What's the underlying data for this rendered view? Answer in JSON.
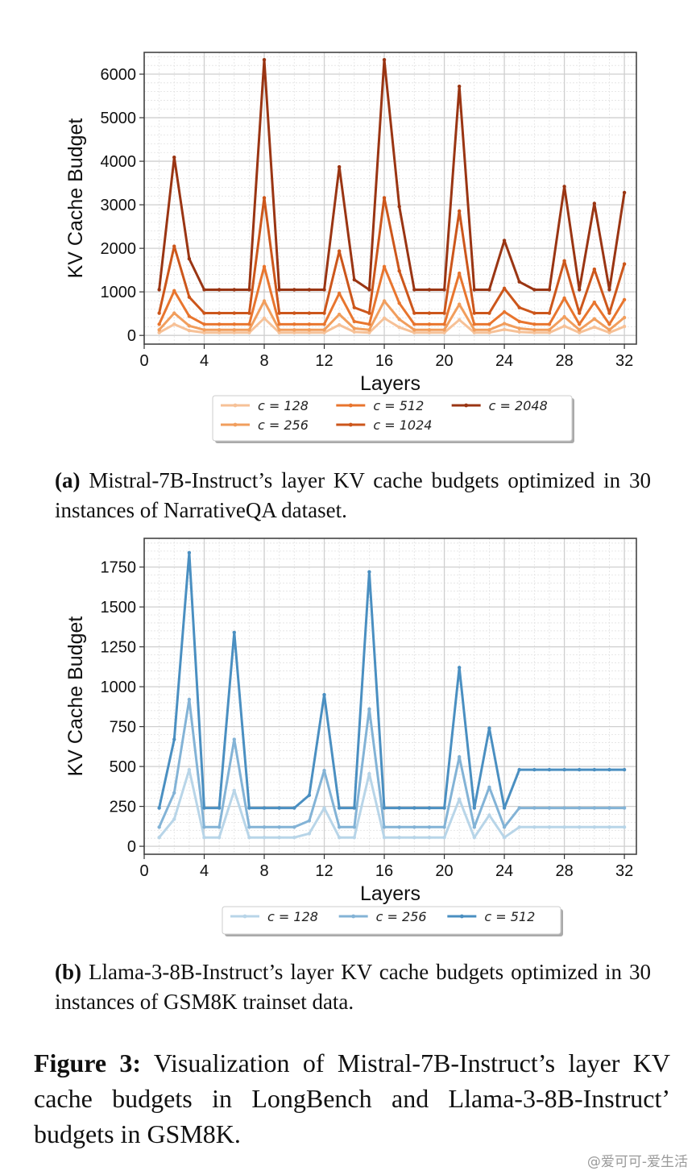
{
  "chart_data": [
    {
      "type": "line",
      "xlabel": "Layers",
      "ylabel": "KV Cache Budget",
      "xlim": [
        0,
        32.8
      ],
      "ylim": [
        -200,
        6500
      ],
      "xticks": [
        0,
        4,
        8,
        12,
        16,
        20,
        24,
        28,
        32
      ],
      "yticks": [
        0,
        1000,
        2000,
        3000,
        4000,
        5000,
        6000
      ],
      "grid": true,
      "legend_position": "bottom-center",
      "x": [
        1,
        2,
        3,
        4,
        5,
        6,
        7,
        8,
        9,
        10,
        11,
        12,
        13,
        14,
        15,
        16,
        17,
        18,
        19,
        20,
        21,
        22,
        23,
        24,
        25,
        26,
        27,
        28,
        29,
        30,
        31,
        32
      ],
      "series": [
        {
          "name": "c = 128",
          "color": "#f6c197",
          "values": [
            64,
            256,
            110,
            64,
            64,
            64,
            64,
            395,
            64,
            64,
            64,
            64,
            242,
            80,
            64,
            395,
            185,
            64,
            64,
            64,
            357,
            64,
            64,
            135,
            80,
            64,
            64,
            214,
            64,
            190,
            64,
            205
          ]
        },
        {
          "name": "c = 256",
          "color": "#f19e5d",
          "values": [
            128,
            512,
            220,
            128,
            128,
            128,
            128,
            790,
            128,
            128,
            128,
            128,
            484,
            160,
            128,
            790,
            370,
            128,
            128,
            128,
            714,
            128,
            128,
            270,
            160,
            128,
            128,
            428,
            128,
            380,
            128,
            410
          ]
        },
        {
          "name": "c = 512",
          "color": "#e8752e",
          "values": [
            256,
            1024,
            440,
            256,
            256,
            256,
            256,
            1580,
            256,
            256,
            256,
            256,
            968,
            320,
            256,
            1580,
            740,
            256,
            256,
            256,
            1428,
            256,
            256,
            540,
            320,
            256,
            256,
            856,
            256,
            760,
            256,
            820
          ]
        },
        {
          "name": "c = 1024",
          "color": "#cc561b",
          "values": [
            512,
            2048,
            880,
            512,
            512,
            512,
            512,
            3160,
            512,
            512,
            512,
            512,
            1936,
            640,
            512,
            3160,
            1480,
            512,
            512,
            512,
            2856,
            512,
            512,
            1080,
            640,
            512,
            512,
            1712,
            512,
            1520,
            512,
            1640
          ]
        },
        {
          "name": "c = 2048",
          "color": "#9a3513",
          "values": [
            1050,
            4090,
            1760,
            1050,
            1050,
            1050,
            1050,
            6330,
            1050,
            1050,
            1050,
            1050,
            3870,
            1280,
            1050,
            6330,
            2960,
            1050,
            1050,
            1050,
            5720,
            1050,
            1050,
            2180,
            1230,
            1050,
            1050,
            3420,
            1050,
            3030,
            1050,
            3280
          ]
        }
      ]
    },
    {
      "type": "line",
      "xlabel": "Layers",
      "ylabel": "KV Cache Budget",
      "xlim": [
        0,
        32.8
      ],
      "ylim": [
        -50,
        1930
      ],
      "xticks": [
        0,
        4,
        8,
        12,
        16,
        20,
        24,
        28,
        32
      ],
      "yticks": [
        0,
        250,
        500,
        750,
        1000,
        1250,
        1500,
        1750
      ],
      "grid": true,
      "legend_position": "bottom-center",
      "x": [
        1,
        2,
        3,
        4,
        5,
        6,
        7,
        8,
        9,
        10,
        11,
        12,
        13,
        14,
        15,
        16,
        17,
        18,
        19,
        20,
        21,
        22,
        23,
        24,
        25,
        26,
        27,
        28,
        29,
        30,
        31,
        32
      ],
      "series": [
        {
          "name": "c = 128",
          "color": "#b8d5e8",
          "values": [
            55,
            170,
            480,
            55,
            55,
            350,
            55,
            55,
            55,
            55,
            80,
            240,
            55,
            55,
            455,
            55,
            55,
            55,
            55,
            55,
            295,
            55,
            195,
            55,
            120,
            120,
            120,
            120,
            120,
            120,
            120,
            120
          ]
        },
        {
          "name": "c = 256",
          "color": "#83b3d6",
          "values": [
            120,
            335,
            920,
            120,
            120,
            670,
            120,
            120,
            120,
            120,
            160,
            475,
            120,
            120,
            860,
            120,
            120,
            120,
            120,
            120,
            560,
            120,
            370,
            120,
            240,
            240,
            240,
            240,
            240,
            240,
            240,
            240
          ]
        },
        {
          "name": "c = 512",
          "color": "#4a8fc1",
          "values": [
            240,
            670,
            1840,
            240,
            240,
            1340,
            240,
            240,
            240,
            240,
            320,
            950,
            240,
            240,
            1720,
            240,
            240,
            240,
            240,
            240,
            1120,
            240,
            740,
            240,
            480,
            480,
            480,
            480,
            480,
            480,
            480,
            480
          ]
        }
      ]
    }
  ],
  "captions": {
    "a_label": "(a)",
    "a_text": " Mistral-7B-Instruct’s layer KV cache budgets optimized in 30 instances of NarrativeQA dataset.",
    "b_label": "(b)",
    "b_text": " Llama-3-8B-Instruct’s layer KV cache budgets optimized in 30 instances of GSM8K trainset data.",
    "figure_label": "Figure 3:",
    "figure_text": " Visualization of Mistral-7B-Instruct’s layer KV cache budgets in LongBench and Llama-3-8B-Instruct’ budgets in GSM8K."
  },
  "watermark": "@爱可可-爱生活"
}
